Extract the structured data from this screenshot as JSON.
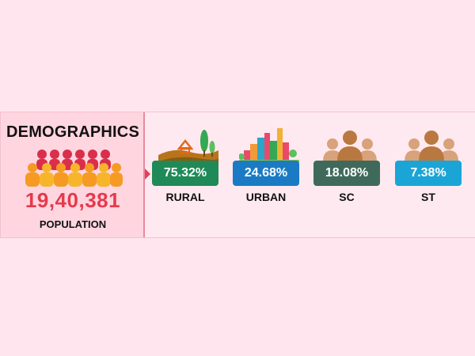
{
  "demographics": {
    "title": "DEMOGRAPHICS",
    "population_value": "19,40,381",
    "population_label": "POPULATION"
  },
  "stats": [
    {
      "label": "RURAL",
      "value": "75.32%",
      "color": "#1f8a57",
      "icon": "rural-landscape-icon"
    },
    {
      "label": "URBAN",
      "value": "24.68%",
      "color": "#1a7bc4",
      "icon": "city-buildings-icon"
    },
    {
      "label": "SC",
      "value": "18.08%",
      "color": "#3f6a5b",
      "icon": "people-group-icon"
    },
    {
      "label": "ST",
      "value": "7.38%",
      "color": "#1aa5d6",
      "icon": "people-group-icon"
    }
  ],
  "colors": {
    "accent": "#e53a4b",
    "people_icon_top": "#d92f4b",
    "people_icon_bottom": "#f6a623"
  }
}
